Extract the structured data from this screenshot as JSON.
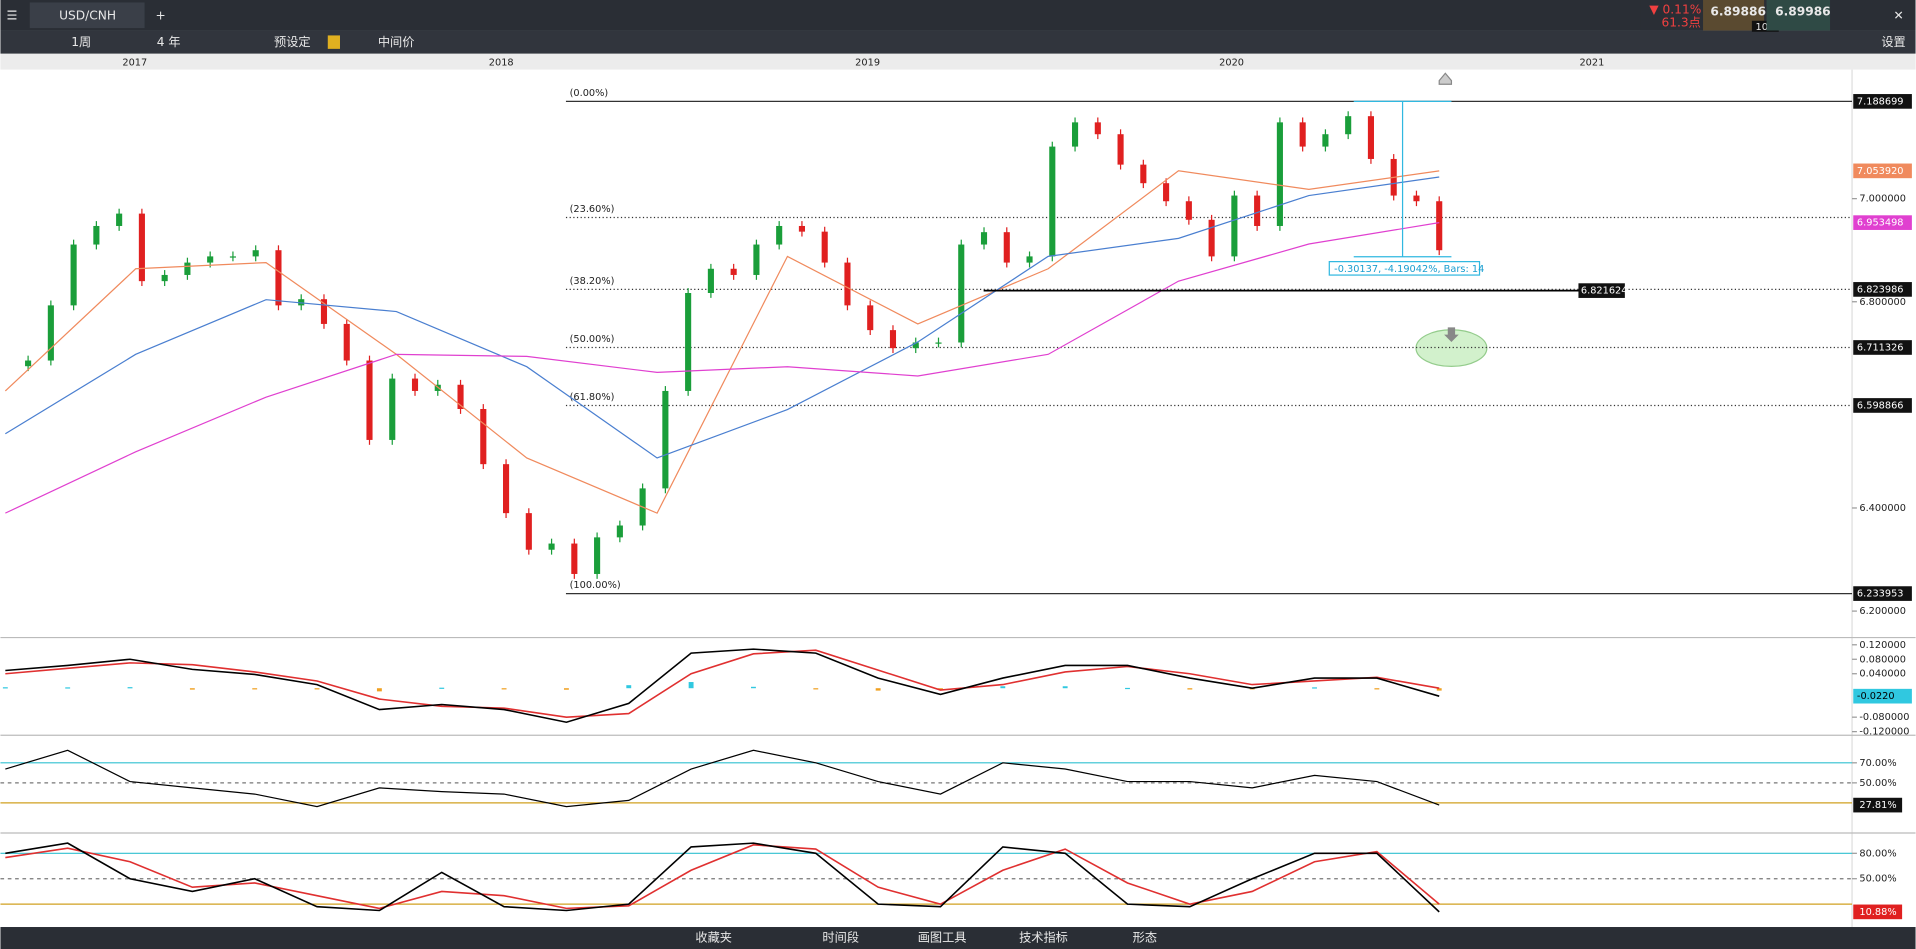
{
  "toolbar": {
    "symbol": "USD/CNH",
    "period": "1周",
    "range": "4 年",
    "preset": "预设定",
    "mid": "中间价",
    "change": "▼ 0.11%",
    "points": "61.3点",
    "bid": "6.89886",
    "spread": "10.0",
    "ask": "6.89986",
    "settings": "设置"
  },
  "timeline": {
    "years": [
      "2017",
      "2018",
      "2019",
      "2020",
      "2021"
    ]
  },
  "price": {
    "type": "candlestick",
    "ylim": [
      6.1534,
      7.2503
    ],
    "yticks": [
      {
        "value": 7.0,
        "label": "7.000000"
      },
      {
        "value": 6.8,
        "label": "6.800000"
      },
      {
        "value": 6.4,
        "label": "6.400000"
      },
      {
        "value": 6.2,
        "label": "6.200000"
      }
    ],
    "closes": [
      6.675,
      6.686,
      6.793,
      6.911,
      6.947,
      6.971,
      6.84,
      6.852,
      6.876,
      6.888,
      6.888,
      6.9,
      6.793,
      6.805,
      6.757,
      6.686,
      6.532,
      6.651,
      6.627,
      6.639,
      6.592,
      6.485,
      6.39,
      6.319,
      6.331,
      6.272,
      6.343,
      6.366,
      6.438,
      6.627,
      6.817,
      6.864,
      6.852,
      6.911,
      6.947,
      6.936,
      6.876,
      6.793,
      6.745,
      6.71,
      6.721,
      6.721,
      6.911,
      6.935,
      6.876,
      6.888,
      7.101,
      7.148,
      7.125,
      7.066,
      7.03,
      6.995,
      6.959,
      6.888,
      7.006,
      6.947,
      7.148,
      7.101,
      7.125,
      7.16,
      7.077,
      7.006,
      6.995,
      6.9
    ],
    "mas": [
      {
        "color": "#f08a5d",
        "values": [
          6.627,
          6.864,
          6.876,
          6.698,
          6.497,
          6.39,
          6.888,
          6.757,
          6.864,
          7.054,
          7.018,
          7.05392
        ],
        "last_label": "7.053920"
      },
      {
        "color": "#4a7fd0",
        "values": [
          6.544,
          6.698,
          6.804,
          6.781,
          6.674,
          6.497,
          6.591,
          6.722,
          6.888,
          6.923,
          7.006,
          7.042
        ]
      },
      {
        "color": "#e040d0",
        "values": [
          6.39,
          6.509,
          6.615,
          6.698,
          6.694,
          6.663,
          6.674,
          6.656,
          6.698,
          6.84,
          6.912,
          6.953498
        ],
        "last_label": "6.953498"
      }
    ],
    "fib": [
      {
        "label": "(0.00%)",
        "value": 7.188699,
        "value_label": "7.188699"
      },
      {
        "label": "(23.60%)",
        "value": 6.963379
      },
      {
        "label": "(38.20%)",
        "value": 6.823986,
        "value_label": "6.823986"
      },
      {
        "label": "(50.00%)",
        "value": 6.711326,
        "value_label": "6.711326"
      },
      {
        "label": "(61.80%)",
        "value": 6.598866,
        "value_label": "6.598866"
      },
      {
        "label": "(100.00%)",
        "value": 6.233953,
        "value_label": "6.233953"
      }
    ],
    "hline": {
      "value": 6.821624,
      "label": "6.821624"
    },
    "measure": {
      "from": 7.188699,
      "to": 6.887329,
      "label": "-0.30137, -4.19042%, Bars: 14"
    }
  },
  "macd": {
    "ylim": [
      -0.13,
      0.14
    ],
    "yticks": [
      {
        "value": 0.12,
        "label": "0.120000"
      },
      {
        "value": 0.08,
        "label": "0.080000"
      },
      {
        "value": 0.04,
        "label": "0.040000"
      },
      {
        "value": -0.08,
        "label": "-0.080000"
      },
      {
        "value": -0.12,
        "label": "-0.120000"
      }
    ],
    "macd": [
      0.049,
      0.063,
      0.08,
      0.052,
      0.038,
      0.01,
      -0.059,
      -0.045,
      -0.059,
      -0.094,
      -0.042,
      0.097,
      0.108,
      0.097,
      0.028,
      -0.017,
      0.028,
      0.063,
      0.063,
      0.028,
      0.0,
      0.028,
      0.028,
      -0.022
    ],
    "signal": [
      0.04,
      0.055,
      0.07,
      0.065,
      0.045,
      0.02,
      -0.03,
      -0.05,
      -0.055,
      -0.08,
      -0.07,
      0.04,
      0.095,
      0.105,
      0.05,
      -0.005,
      0.01,
      0.045,
      0.06,
      0.04,
      0.01,
      0.02,
      0.03,
      0.0
    ],
    "last_label": "-0.0220"
  },
  "rsi": {
    "ylim": [
      0,
      97.5
    ],
    "yticks": [
      {
        "value": 70,
        "label": "70.00%"
      },
      {
        "value": 50,
        "label": "50.00%"
      }
    ],
    "levels": [
      70,
      50,
      30
    ],
    "values": [
      63.8,
      82.5,
      51.3,
      45,
      38.8,
      26.3,
      45,
      41.3,
      38.8,
      26.3,
      32.5,
      63.8,
      82.5,
      70,
      51.3,
      38.8,
      70,
      63.8,
      51.3,
      51.3,
      45,
      57.5,
      51.3,
      27.81
    ],
    "last_label": "27.81%"
  },
  "stoch": {
    "ylim": [
      -7,
      104
    ],
    "yticks": [
      {
        "value": 80,
        "label": "80.00%"
      },
      {
        "value": 50,
        "label": "50.00%"
      }
    ],
    "levels": [
      80,
      50,
      20
    ],
    "k": [
      80,
      92,
      50,
      35,
      50,
      17,
      12.5,
      57.5,
      17,
      12.5,
      20,
      87.5,
      92,
      80,
      20,
      17,
      87.5,
      80,
      20,
      17,
      50,
      80,
      80,
      10.88
    ],
    "d": [
      75,
      86,
      70,
      40,
      45,
      30,
      15,
      35,
      30,
      15,
      18,
      60,
      90,
      85,
      40,
      20,
      60,
      85,
      45,
      20,
      35,
      70,
      82,
      20
    ],
    "last_label": "10.88%"
  },
  "bottom_bar": {
    "items": [
      "收藏夹",
      "时间段",
      "画图工具",
      "技术指标",
      "形态"
    ]
  }
}
